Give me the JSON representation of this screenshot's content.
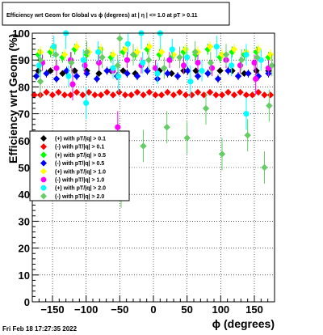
{
  "chart_data": {
    "type": "scatter",
    "title": "Efficiency wrt Geom for Global vs ϕ (degrees) at | η | <= 1.0 at pT > 0.11",
    "xlabel": "ϕ (degrees)",
    "ylabel": "Efficiency wrt Geom (%)",
    "xlim": [
      -180,
      180
    ],
    "ylim": [
      0,
      100
    ],
    "xticks": [
      -150,
      -100,
      -50,
      0,
      50,
      100,
      150
    ],
    "xtick_labels": [
      "−150",
      "−100",
      "−50",
      "0",
      "50",
      "100",
      "150"
    ],
    "yticks": [
      0,
      10,
      20,
      30,
      40,
      50,
      60,
      70,
      80,
      90,
      100
    ],
    "ytick_labels": [
      "0",
      "10",
      "20",
      "30",
      "40",
      "50",
      "60",
      "70",
      "80",
      "90",
      "100"
    ],
    "grid": true,
    "legend_position": "middle-left",
    "footer": "Fri Feb 18 17:27:35 2022",
    "series": [
      {
        "name": "(+) with pT/|q| > 0.1",
        "color": "#000000",
        "marker": "diamond",
        "x": [
          -171,
          -153,
          -135,
          -117,
          -99,
          -81,
          -63,
          -45,
          -27,
          -9,
          9,
          27,
          45,
          63,
          81,
          99,
          117,
          135,
          153,
          171
        ],
        "y": [
          86,
          86,
          85,
          86,
          86,
          85,
          86,
          86,
          85,
          86,
          86,
          85,
          86,
          86,
          85,
          86,
          86,
          85,
          86,
          86
        ],
        "err": [
          1,
          1,
          1,
          1,
          1,
          1,
          1,
          1,
          1,
          1,
          1,
          1,
          1,
          1,
          1,
          1,
          1,
          1,
          1,
          1
        ]
      },
      {
        "name": "(-) with pT/|q| > 0.1",
        "color": "#ff0000",
        "marker": "diamond",
        "x": [
          -177,
          -168,
          -159,
          -150,
          -141,
          -132,
          -123,
          -114,
          -105,
          -96,
          -87,
          -78,
          -69,
          -60,
          -51,
          -42,
          -33,
          -24,
          -15,
          -6,
          3,
          12,
          21,
          30,
          39,
          48,
          57,
          66,
          75,
          84,
          93,
          102,
          111,
          120,
          129,
          138,
          147,
          156,
          165,
          174
        ],
        "y": [
          77,
          77,
          78,
          77,
          78,
          77,
          77,
          78,
          77,
          78,
          77,
          77,
          78,
          77,
          78,
          77,
          77,
          78,
          77,
          78,
          77,
          77,
          78,
          77,
          78,
          77,
          77,
          78,
          77,
          78,
          77,
          77,
          78,
          77,
          78,
          77,
          77,
          78,
          77,
          77
        ],
        "err": [
          1,
          1,
          1,
          1,
          1,
          1,
          1,
          1,
          1,
          1,
          1,
          1,
          1,
          1,
          1,
          1,
          1,
          1,
          1,
          1,
          1,
          1,
          1,
          1,
          1,
          1,
          1,
          1,
          1,
          1,
          1,
          1,
          1,
          1,
          1,
          1,
          1,
          1,
          1,
          1
        ]
      },
      {
        "name": "(+) with pT/|q| > 0.5",
        "color": "#00ff00",
        "marker": "diamond",
        "x": [
          -171,
          -153,
          -135,
          -117,
          -99,
          -81,
          -63,
          -45,
          -27,
          -9,
          9,
          27,
          45,
          63,
          81,
          99,
          117,
          135,
          153,
          171
        ],
        "y": [
          92,
          93,
          91,
          94,
          92,
          93,
          91,
          93,
          92,
          94,
          92,
          91,
          93,
          92,
          94,
          91,
          93,
          92,
          93,
          91
        ],
        "err": [
          2,
          2,
          2,
          2,
          2,
          2,
          2,
          2,
          2,
          2,
          2,
          2,
          2,
          2,
          2,
          2,
          2,
          2,
          2,
          2
        ]
      },
      {
        "name": "(-) with pT/|q| > 0.5",
        "color": "#0000ff",
        "marker": "diamond",
        "x": [
          -174,
          -159,
          -144,
          -129,
          -114,
          -99,
          -84,
          -69,
          -54,
          -39,
          -24,
          -9,
          6,
          21,
          36,
          51,
          66,
          81,
          96,
          111,
          126,
          141,
          156,
          171
        ],
        "y": [
          84,
          85,
          83,
          86,
          84,
          85,
          83,
          86,
          84,
          85,
          84,
          86,
          83,
          85,
          84,
          86,
          84,
          85,
          83,
          86,
          84,
          85,
          84,
          85
        ],
        "err": [
          1.5,
          1.5,
          1.5,
          1.5,
          1.5,
          1.5,
          1.5,
          1.5,
          1.5,
          1.5,
          1.5,
          1.5,
          1.5,
          1.5,
          1.5,
          1.5,
          1.5,
          1.5,
          1.5,
          1.5,
          1.5,
          1.5,
          1.5,
          1.5
        ]
      },
      {
        "name": "(+) with pT/|q| > 1.0",
        "color": "#ffff00",
        "marker": "diamond",
        "x": [
          -168,
          -150,
          -132,
          -114,
          -96,
          -78,
          -60,
          -42,
          -24,
          -6,
          12,
          30,
          48,
          66,
          84,
          102,
          120,
          138,
          156,
          174
        ],
        "y": [
          93,
          94,
          92,
          95,
          93,
          94,
          92,
          94,
          93,
          95,
          93,
          92,
          94,
          93,
          95,
          92,
          94,
          93,
          94,
          92
        ],
        "err": [
          2,
          2,
          2,
          2,
          2,
          2,
          2,
          2,
          2,
          2,
          2,
          2,
          2,
          2,
          2,
          2,
          2,
          2,
          2,
          2
        ]
      },
      {
        "name": "(-) with pT/|q| > 1.0",
        "color": "#ff00ff",
        "marker": "circle",
        "x": [
          -165,
          -144,
          -123,
          -102,
          -81,
          -60,
          -39,
          -18,
          3,
          24,
          45,
          66,
          87,
          108,
          129,
          150,
          171
        ],
        "y": [
          89,
          87,
          90,
          88,
          89,
          86,
          90,
          88,
          87,
          90,
          88,
          89,
          87,
          90,
          88,
          89,
          87
        ],
        "err": [
          3,
          3,
          3,
          3,
          3,
          3,
          3,
          3,
          3,
          3,
          3,
          3,
          3,
          3,
          3,
          3,
          3
        ],
        "outliers": [
          {
            "x": -53,
            "y": 65
          },
          {
            "x": -120,
            "y": 81
          },
          {
            "x": 152,
            "y": 83
          }
        ]
      },
      {
        "name": "(+) with pT/|q| > 2.0",
        "color": "#00ffff",
        "marker": "circle",
        "x": [
          -170,
          -148,
          -126,
          -104,
          -82,
          -60,
          -38,
          -16,
          6,
          28,
          50,
          72,
          94,
          116,
          138,
          160
        ],
        "y": [
          88,
          95,
          84,
          90,
          93,
          87,
          96,
          89,
          85,
          94,
          91,
          86,
          95,
          88,
          92,
          90
        ],
        "err": [
          4,
          4,
          4,
          4,
          4,
          4,
          4,
          4,
          4,
          4,
          4,
          4,
          4,
          4,
          4,
          4
        ],
        "outliers": [
          {
            "x": -130,
            "y": 100
          },
          {
            "x": -100,
            "y": 74
          },
          {
            "x": -18,
            "y": 100
          },
          {
            "x": 10,
            "y": 100
          },
          {
            "x": 138,
            "y": 70
          },
          {
            "x": -52,
            "y": 84
          },
          {
            "x": 55,
            "y": 82
          }
        ]
      },
      {
        "name": "(-) with pT/|q| > 2.0",
        "color": "#66cc66",
        "marker": "diamond",
        "x": [
          -168,
          -145,
          -122,
          -99,
          -76,
          -53,
          -30,
          -7,
          16,
          39,
          62,
          85,
          108,
          131,
          154,
          176
        ],
        "y": [
          90,
          92,
          89,
          93,
          91,
          88,
          92,
          90,
          87,
          91,
          93,
          89,
          92,
          90,
          91,
          88
        ],
        "err": [
          4,
          4,
          4,
          4,
          4,
          4,
          4,
          4,
          4,
          4,
          4,
          4,
          4,
          4,
          4,
          4
        ],
        "outliers": [
          {
            "x": -168,
            "y": 82
          },
          {
            "x": -48,
            "y": 41
          },
          {
            "x": -15,
            "y": 58
          },
          {
            "x": 20,
            "y": 65
          },
          {
            "x": 50,
            "y": 61
          },
          {
            "x": 102,
            "y": 55
          },
          {
            "x": 140,
            "y": 62
          },
          {
            "x": 165,
            "y": 50
          },
          {
            "x": 172,
            "y": 73
          },
          {
            "x": -50,
            "y": 98
          },
          {
            "x": 78,
            "y": 72
          }
        ]
      }
    ]
  }
}
